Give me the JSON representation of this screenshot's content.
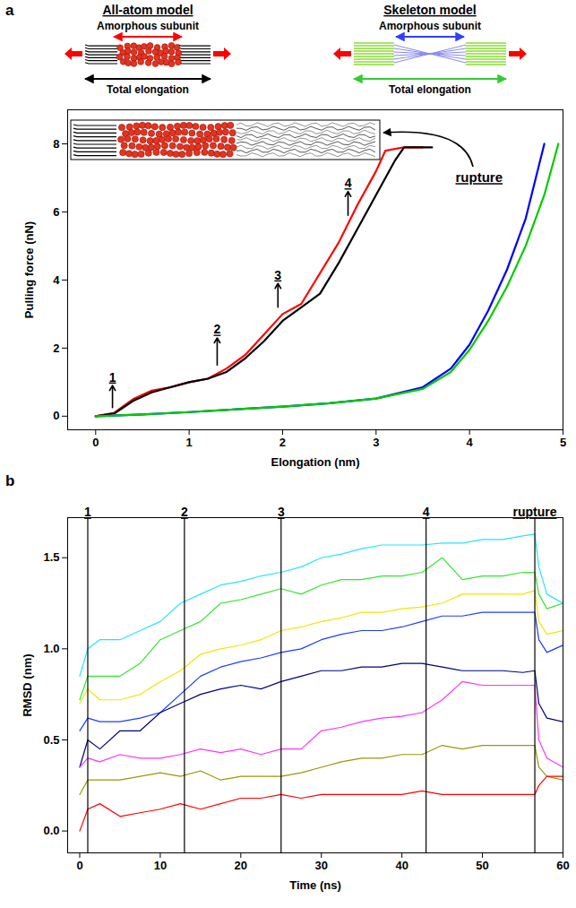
{
  "chart_data": [
    {
      "type": "line",
      "panel_label": "a",
      "models": [
        {
          "title": "All-atom model",
          "subunit_label": "Amorphous subunit",
          "total_label": "Total elongation"
        },
        {
          "title": "Skeleton model",
          "subunit_label": "Amorphous subunit",
          "total_label": "Total elongation"
        }
      ],
      "x_label": "Elongation (nm)",
      "y_label": "Pulling force (nN)",
      "xlim": [
        -0.3,
        5
      ],
      "ylim": [
        -0.4,
        9
      ],
      "xticks": [
        0,
        1,
        2,
        3,
        4,
        5
      ],
      "yticks": [
        0,
        2,
        4,
        6,
        8
      ],
      "grid": false,
      "series": [
        {
          "color": "#ff0000",
          "x": [
            0,
            0.2,
            0.4,
            0.6,
            0.8,
            1.0,
            1.2,
            1.4,
            1.6,
            1.8,
            2.0,
            2.2,
            2.4,
            2.6,
            2.8,
            3.0,
            3.1,
            3.3,
            3.5
          ],
          "values": [
            0,
            0.1,
            0.5,
            0.75,
            0.85,
            1.0,
            1.1,
            1.4,
            1.8,
            2.4,
            3.0,
            3.3,
            4.2,
            5.1,
            6.2,
            7.2,
            7.8,
            7.9,
            7.9
          ]
        },
        {
          "color": "#000000",
          "x": [
            0,
            0.2,
            0.4,
            0.6,
            0.8,
            1.0,
            1.2,
            1.4,
            1.6,
            1.8,
            2.0,
            2.2,
            2.4,
            2.6,
            2.8,
            3.0,
            3.2,
            3.3,
            3.6
          ],
          "values": [
            0,
            0.08,
            0.45,
            0.7,
            0.85,
            1.0,
            1.1,
            1.3,
            1.7,
            2.2,
            2.8,
            3.2,
            3.6,
            4.5,
            5.5,
            6.5,
            7.5,
            7.9,
            7.9
          ]
        },
        {
          "color": "#0000ff",
          "x": [
            0,
            0.5,
            1,
            1.5,
            2,
            2.5,
            3,
            3.5,
            3.8,
            4.0,
            4.2,
            4.4,
            4.6,
            4.8
          ],
          "values": [
            0,
            0.05,
            0.12,
            0.2,
            0.28,
            0.38,
            0.52,
            0.85,
            1.4,
            2.1,
            3.1,
            4.3,
            5.8,
            8.0
          ]
        },
        {
          "color": "#00cc00",
          "x": [
            0,
            0.5,
            1,
            1.5,
            2,
            2.5,
            3,
            3.5,
            3.8,
            4.0,
            4.2,
            4.4,
            4.6,
            4.8,
            4.95
          ],
          "values": [
            0,
            0.05,
            0.12,
            0.2,
            0.28,
            0.38,
            0.52,
            0.8,
            1.3,
            1.95,
            2.8,
            3.8,
            5.0,
            6.5,
            8.0
          ]
        }
      ],
      "annotations": [
        {
          "text": "1",
          "x": 0.18,
          "y1": 0.25,
          "y2": 0.9
        },
        {
          "text": "2",
          "x": 1.3,
          "y1": 1.5,
          "y2": 2.3
        },
        {
          "text": "3",
          "x": 1.95,
          "y1": 3.2,
          "y2": 3.9
        },
        {
          "text": "4",
          "x": 2.7,
          "y1": 5.9,
          "y2": 6.6
        },
        {
          "text": "rupture",
          "x": 3.85,
          "y": 7.0
        }
      ]
    },
    {
      "type": "line",
      "panel_label": "b",
      "x_label": "Time (ns)",
      "y_label": "RMSD (nm)",
      "xlim": [
        -1.5,
        60
      ],
      "ylim": [
        -0.12,
        1.72
      ],
      "xticks": [
        0,
        10,
        20,
        30,
        40,
        50,
        60
      ],
      "yticks": [
        {
          "value": 0,
          "label": "0.0"
        },
        {
          "value": 0.5,
          "label": "0.5"
        },
        {
          "value": 1,
          "label": "1.0"
        },
        {
          "value": 1.5,
          "label": "1.5"
        }
      ],
      "grid": false,
      "x": [
        0,
        1,
        2.5,
        5,
        7.5,
        10,
        12.5,
        15,
        17.5,
        20,
        22.5,
        25,
        27.5,
        30,
        32.5,
        35,
        37.5,
        40,
        42.5,
        45,
        47.5,
        50,
        52.5,
        55,
        56.5,
        57,
        58,
        60
      ],
      "series": [
        {
          "color": "#22e5ff",
          "values": [
            0.85,
            1.0,
            1.05,
            1.05,
            1.1,
            1.15,
            1.25,
            1.3,
            1.35,
            1.37,
            1.4,
            1.42,
            1.45,
            1.5,
            1.52,
            1.55,
            1.57,
            1.57,
            1.57,
            1.58,
            1.58,
            1.6,
            1.6,
            1.62,
            1.63,
            1.45,
            1.3,
            1.25
          ]
        },
        {
          "color": "#33e633",
          "values": [
            0.72,
            0.85,
            0.85,
            0.85,
            0.92,
            1.05,
            1.1,
            1.15,
            1.25,
            1.27,
            1.3,
            1.33,
            1.3,
            1.35,
            1.38,
            1.38,
            1.4,
            1.4,
            1.42,
            1.5,
            1.38,
            1.4,
            1.4,
            1.42,
            1.42,
            1.3,
            1.22,
            1.25
          ]
        },
        {
          "color": "#f2e600",
          "values": [
            0.7,
            0.78,
            0.72,
            0.72,
            0.75,
            0.82,
            0.88,
            0.97,
            1.0,
            1.02,
            1.05,
            1.1,
            1.12,
            1.15,
            1.17,
            1.2,
            1.2,
            1.22,
            1.23,
            1.25,
            1.3,
            1.3,
            1.3,
            1.3,
            1.32,
            1.15,
            1.08,
            1.1
          ]
        },
        {
          "color": "#1e3cff",
          "values": [
            0.55,
            0.62,
            0.6,
            0.6,
            0.62,
            0.65,
            0.75,
            0.85,
            0.9,
            0.93,
            0.95,
            0.98,
            1.0,
            1.05,
            1.08,
            1.1,
            1.1,
            1.12,
            1.15,
            1.18,
            1.18,
            1.2,
            1.2,
            1.2,
            1.2,
            1.05,
            0.98,
            1.02
          ]
        },
        {
          "color": "#000080",
          "values": [
            0.35,
            0.5,
            0.45,
            0.55,
            0.55,
            0.65,
            0.7,
            0.75,
            0.78,
            0.8,
            0.78,
            0.82,
            0.85,
            0.88,
            0.88,
            0.9,
            0.9,
            0.92,
            0.92,
            0.9,
            0.88,
            0.88,
            0.88,
            0.87,
            0.88,
            0.7,
            0.62,
            0.6
          ]
        },
        {
          "color": "#ff33ff",
          "values": [
            0.35,
            0.4,
            0.38,
            0.42,
            0.4,
            0.4,
            0.42,
            0.45,
            0.43,
            0.45,
            0.42,
            0.45,
            0.45,
            0.55,
            0.57,
            0.6,
            0.62,
            0.63,
            0.65,
            0.72,
            0.82,
            0.8,
            0.8,
            0.8,
            0.8,
            0.5,
            0.4,
            0.35
          ]
        },
        {
          "color": "#999900",
          "values": [
            0.2,
            0.28,
            0.28,
            0.28,
            0.3,
            0.32,
            0.3,
            0.33,
            0.28,
            0.3,
            0.3,
            0.3,
            0.32,
            0.35,
            0.38,
            0.4,
            0.4,
            0.42,
            0.42,
            0.47,
            0.45,
            0.47,
            0.47,
            0.47,
            0.47,
            0.35,
            0.3,
            0.28
          ]
        },
        {
          "color": "#ff0000",
          "values": [
            0.0,
            0.12,
            0.15,
            0.08,
            0.1,
            0.12,
            0.15,
            0.12,
            0.15,
            0.18,
            0.18,
            0.2,
            0.18,
            0.2,
            0.2,
            0.2,
            0.2,
            0.2,
            0.22,
            0.2,
            0.2,
            0.2,
            0.2,
            0.2,
            0.2,
            0.25,
            0.3,
            0.3
          ]
        }
      ],
      "events": [
        {
          "x": 1,
          "label": "1"
        },
        {
          "x": 13,
          "label": "2"
        },
        {
          "x": 25,
          "label": "3"
        },
        {
          "x": 43,
          "label": "4"
        },
        {
          "x": 56.5,
          "label": "rupture"
        }
      ]
    }
  ]
}
